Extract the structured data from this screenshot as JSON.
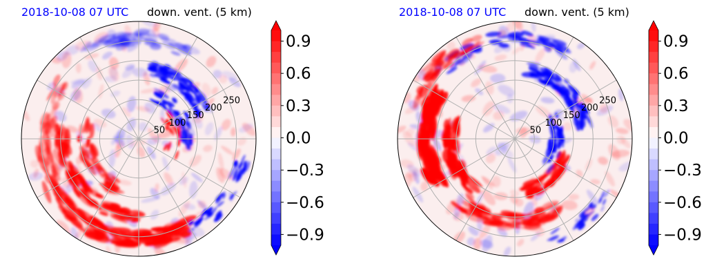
{
  "chart_data": [
    {
      "type": "heatmap",
      "projection": "polar",
      "title_left": "2018-10-08 07 UTC",
      "title_right": "down. vent. (5 km)",
      "radial_ticks": [
        50,
        100,
        150,
        200,
        250
      ],
      "colorbar": {
        "ticks": [
          "0.9",
          "0.6",
          "0.3",
          "0.0",
          "−0.3",
          "−0.6",
          "−0.9"
        ],
        "range": [
          -1.0,
          1.0
        ],
        "extend": "both"
      },
      "colors": {
        "positive": "#ff0000",
        "negative": "#0000ff",
        "zero": "#ffffff"
      },
      "grid": true
    },
    {
      "type": "heatmap",
      "projection": "polar",
      "title_left": "2018-10-08 07 UTC",
      "title_right": "down. vent. (5 km)",
      "radial_ticks": [
        50,
        100,
        150,
        200,
        250
      ],
      "colorbar": {
        "ticks": [
          "0.9",
          "0.6",
          "0.3",
          "0.0",
          "−0.3",
          "−0.6",
          "−0.9"
        ],
        "range": [
          -1.0,
          1.0
        ],
        "extend": "both"
      },
      "colors": {
        "positive": "#ff0000",
        "negative": "#0000ff",
        "zero": "#ffffff"
      },
      "grid": true
    }
  ]
}
